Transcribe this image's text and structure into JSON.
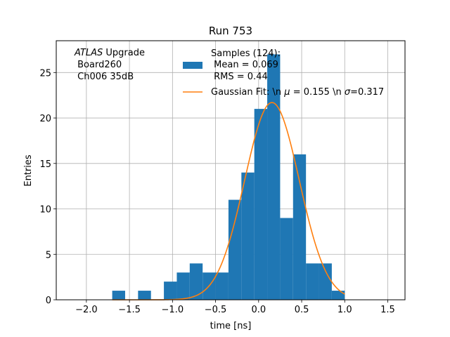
{
  "chart_data": {
    "type": "bar",
    "title": "Run 753",
    "xlabel": "time [ns]",
    "ylabel": "Entries",
    "xlim": [
      -2.35,
      1.7
    ],
    "ylim": [
      0,
      28.5
    ],
    "grid": true,
    "xticks": [
      -2.0,
      -1.5,
      -1.0,
      -0.5,
      0.0,
      0.5,
      1.0,
      1.5
    ],
    "xtick_labels": [
      "−2.0",
      "−1.5",
      "−1.0",
      "−0.5",
      "0.0",
      "0.5",
      "1.0",
      "1.5"
    ],
    "yticks": [
      0,
      5,
      10,
      15,
      20,
      25
    ],
    "ytick_labels": [
      "0",
      "5",
      "10",
      "15",
      "20",
      "25"
    ],
    "annotation": {
      "italic": "ATLAS",
      "rest": " Upgrade",
      "line2": " Board260",
      "line3": " Ch006 35dB"
    },
    "legend": {
      "placement": "top-right",
      "hist_label_lines": [
        "Samples (124):",
        " Mean = 0.069",
        " RMS = 0.44"
      ],
      "fit_label_pre": "Gaussian Fit: \\n ",
      "fit_mu": "μ",
      "fit_label_mid": " = 0.155 \\n ",
      "fit_sigma": "σ",
      "fit_label_post": "=0.317"
    },
    "series": [
      {
        "kind": "histogram",
        "color": "#1f77b4",
        "bin_edges": [
          -1.7,
          -1.55,
          -1.4,
          -1.25,
          -1.1,
          -0.95,
          -0.8,
          -0.65,
          -0.5,
          -0.35,
          -0.2,
          -0.05,
          0.1,
          0.25,
          0.4,
          0.55,
          0.7,
          0.85,
          1.0,
          1.15
        ],
        "values": [
          1,
          0,
          1,
          0,
          2,
          3,
          4,
          3,
          3,
          11,
          14,
          21,
          27,
          9,
          16,
          4,
          4,
          1,
          0
        ]
      },
      {
        "kind": "gaussian",
        "color": "#ff7f0e",
        "amplitude": 21.7,
        "mu": 0.155,
        "sigma": 0.317,
        "x_range": [
          -1.7,
          1.0
        ]
      }
    ]
  }
}
